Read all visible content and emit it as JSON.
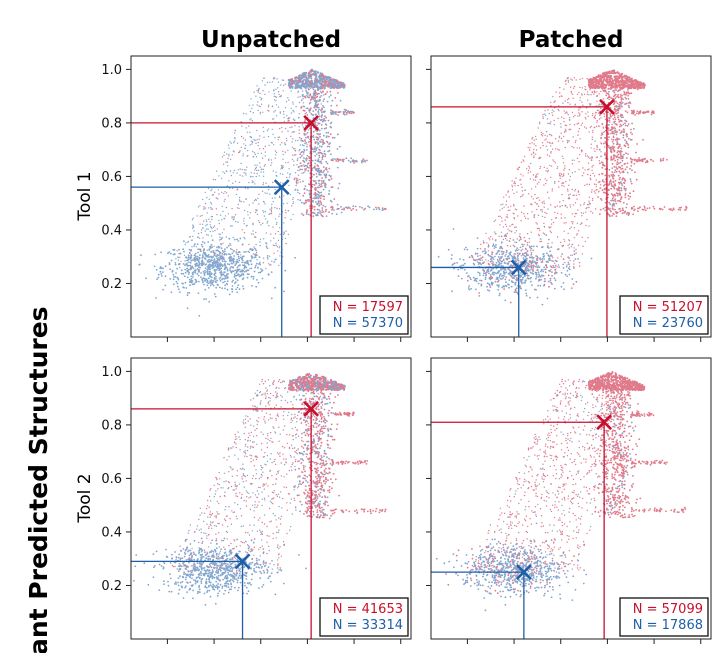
{
  "chart_data": {
    "type": "scatter",
    "figure_ylabel": "ant Predicted Structures",
    "columns": [
      "Unpatched",
      "Patched"
    ],
    "rows": [
      "Tool 1",
      "Tool 2"
    ],
    "colors": {
      "red": "#c8102e",
      "blue": "#1f5fa8"
    },
    "y_ticks": [
      0.2,
      0.4,
      0.6,
      0.8,
      1.0
    ],
    "y_tick_labels": [
      "0.2",
      "0.4",
      "0.6",
      "0.8",
      "1.0"
    ],
    "ylim": [
      0.0,
      1.05
    ],
    "x_ticks": [
      1,
      2,
      3,
      4,
      5,
      6
    ],
    "x_tick_labels": [
      "",
      "",
      "",
      "",
      "",
      ""
    ],
    "xlim": [
      0.22,
      6.22
    ],
    "panels": [
      {
        "id": "tool1-unpatched",
        "row": "Tool 1",
        "column": "Unpatched",
        "dominant": "blue",
        "counts": {
          "red": "N = 17597",
          "blue": "N = 57370"
        },
        "markers": {
          "red": {
            "x": 4.08,
            "y": 0.8
          },
          "blue": {
            "x": 3.45,
            "y": 0.56
          }
        }
      },
      {
        "id": "tool1-patched",
        "row": "Tool 1",
        "column": "Patched",
        "dominant": "red",
        "counts": {
          "red": "N = 51207",
          "blue": "N = 23760"
        },
        "markers": {
          "red": {
            "x": 3.99,
            "y": 0.86
          },
          "blue": {
            "x": 2.1,
            "y": 0.26
          }
        }
      },
      {
        "id": "tool2-unpatched",
        "row": "Tool 2",
        "column": "Unpatched",
        "dominant": "mixed",
        "counts": {
          "red": "N = 41653",
          "blue": "N = 33314"
        },
        "markers": {
          "red": {
            "x": 4.08,
            "y": 0.86
          },
          "blue": {
            "x": 2.61,
            "y": 0.29
          }
        }
      },
      {
        "id": "tool2-patched",
        "row": "Tool 2",
        "column": "Patched",
        "dominant": "red",
        "counts": {
          "red": "N = 57099",
          "blue": "N = 17868"
        },
        "markers": {
          "red": {
            "x": 3.93,
            "y": 0.81
          },
          "blue": {
            "x": 2.21,
            "y": 0.25
          }
        }
      }
    ]
  }
}
